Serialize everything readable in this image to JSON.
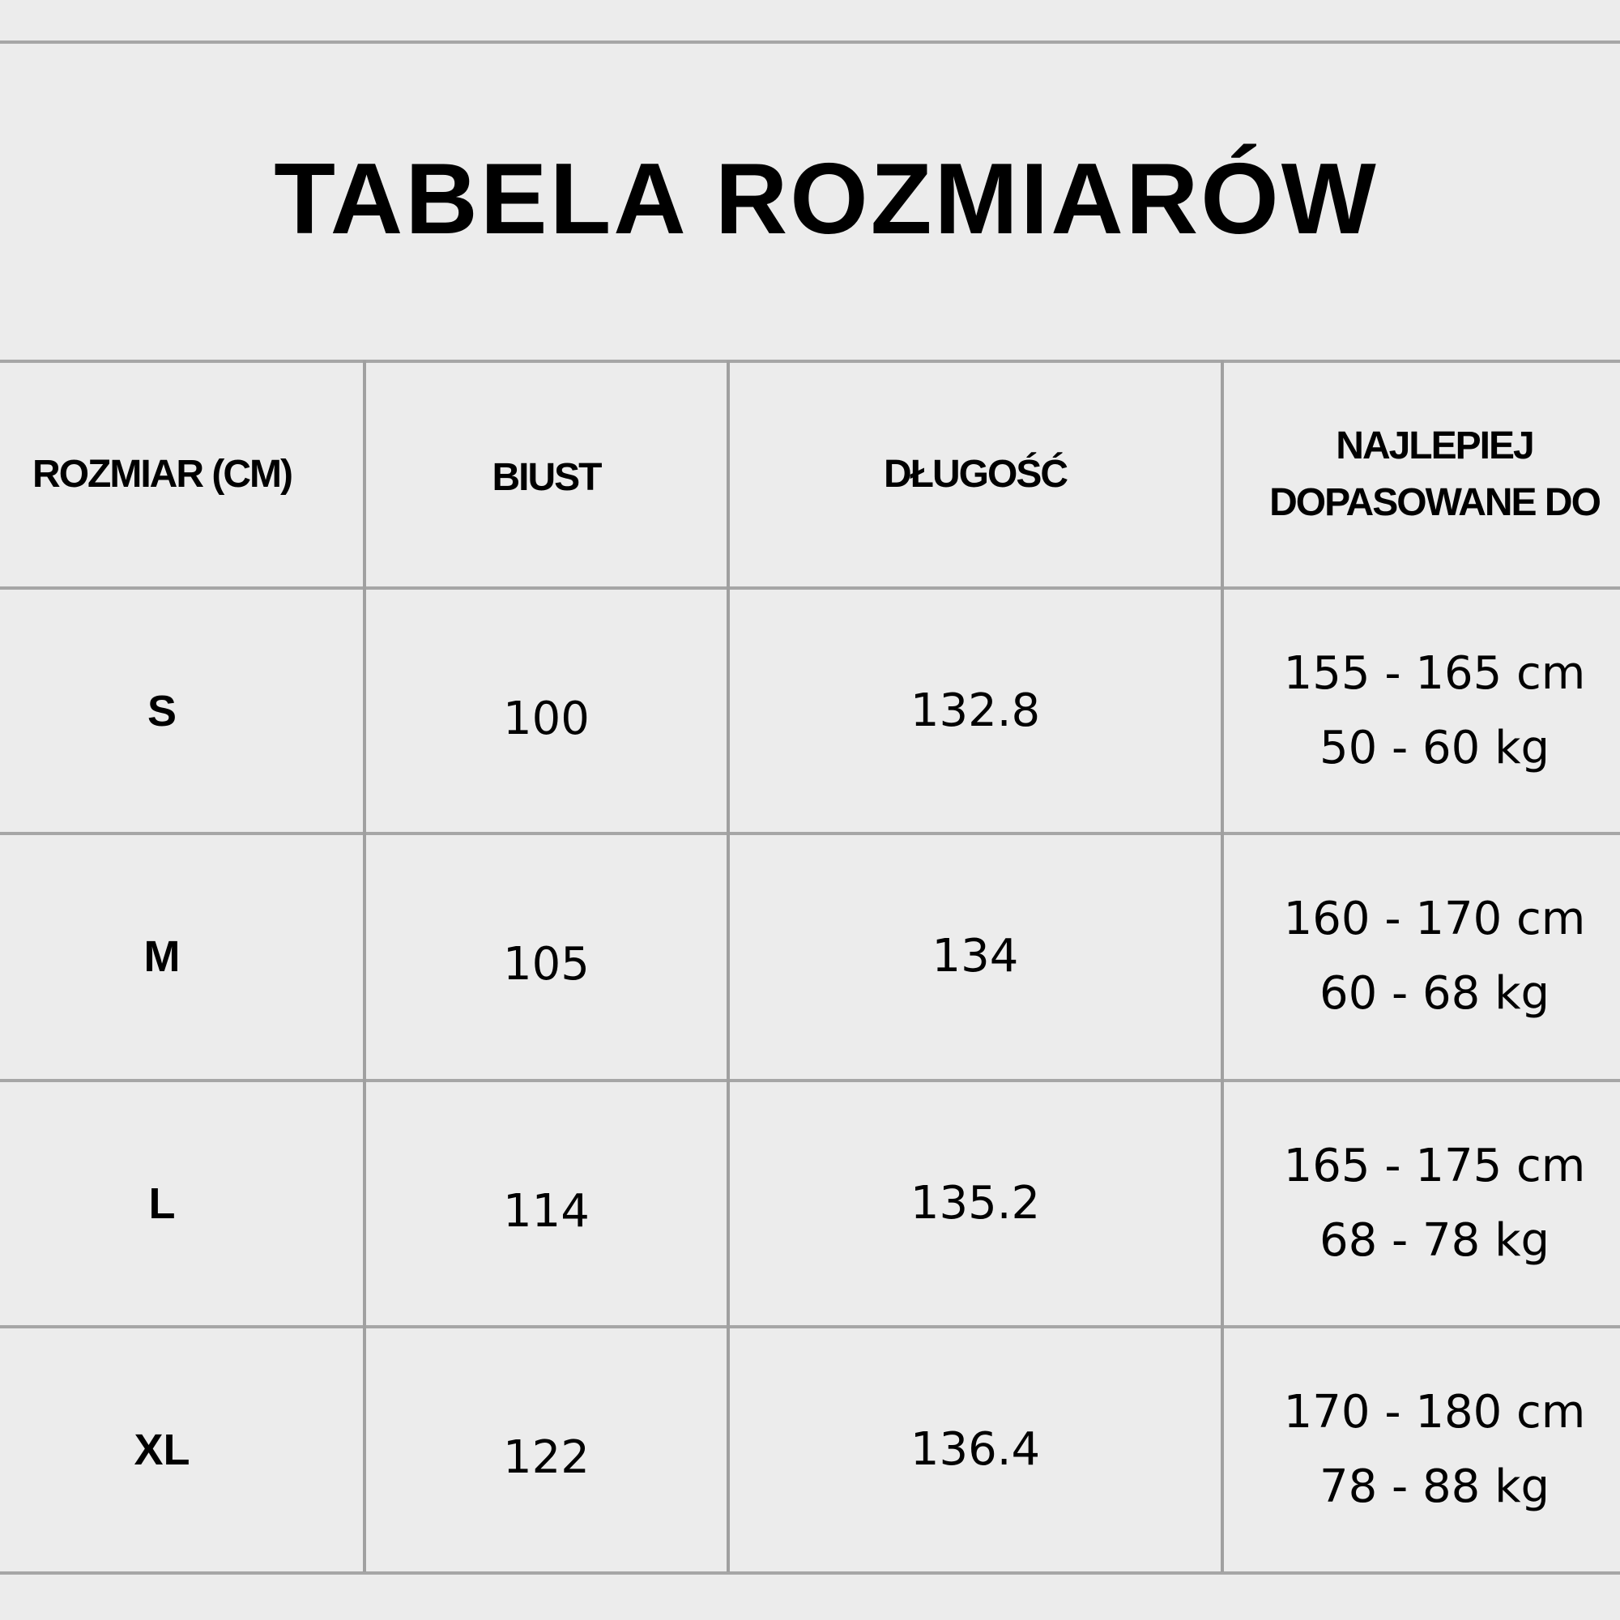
{
  "title": "TABELA ROZMIARÓW",
  "headers": [
    "ROZMIAR (CM)",
    "BIUST",
    "DŁUGOŚĆ",
    "NAJLEPIEJ DOPASOWANE DO"
  ],
  "header_fit_lines": [
    "NAJLEPIEJ",
    "DOPASOWANE DO"
  ],
  "rows": [
    {
      "size": "S",
      "bust": "100",
      "length": "132.8",
      "height": "155 - 165 cm",
      "weight": "50 - 60 kg"
    },
    {
      "size": "M",
      "bust": "105",
      "length": "134",
      "height": "160 - 170 cm",
      "weight": "60 - 68 kg"
    },
    {
      "size": "L",
      "bust": "114",
      "length": "135.2",
      "height": "165 - 175 cm",
      "weight": "68 - 78 kg"
    },
    {
      "size": "XL",
      "bust": "122",
      "length": "136.4",
      "height": "170 - 180 cm",
      "weight": "78 - 88 kg"
    }
  ],
  "colors": {
    "background": "#ececec",
    "grid": "#a6a6a6",
    "text": "#000000"
  }
}
